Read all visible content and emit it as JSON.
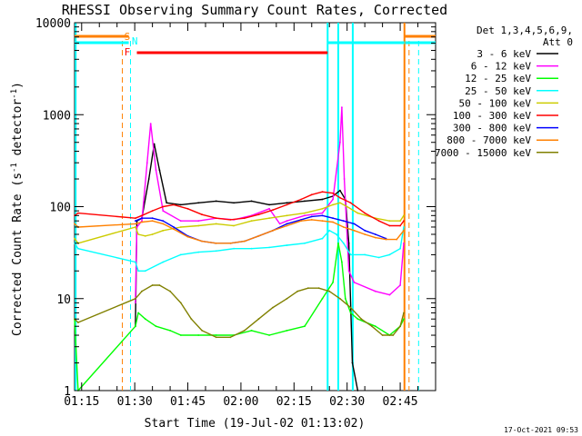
{
  "chart_data": {
    "type": "line",
    "title": "RHESSI Observing Summary Count Rates, Corrected",
    "xlabel": "Start Time (19-Jul-02 01:13:02)",
    "ylabel_main": "Corrected Count Rate (s",
    "ylabel_sup1": "-1",
    "ylabel_mid": " detector",
    "ylabel_sup2": "-1",
    "ylabel_end": ")",
    "timestamp": "17-Oct-2021 09:53",
    "x_min_minutes": 0,
    "x_max_minutes": 102,
    "ylim": [
      1,
      10000
    ],
    "yscale": "log",
    "x_ticks": [
      {
        "label": "01:15",
        "minute": 2
      },
      {
        "label": "01:30",
        "minute": 17
      },
      {
        "label": "01:45",
        "minute": 32
      },
      {
        "label": "02:00",
        "minute": 47
      },
      {
        "label": "02:15",
        "minute": 62
      },
      {
        "label": "02:30",
        "minute": 77
      },
      {
        "label": "02:45",
        "minute": 92
      }
    ],
    "y_ticks": [
      {
        "label": "1",
        "value": 1
      },
      {
        "label": "10",
        "value": 10
      },
      {
        "label": "100",
        "value": 100
      },
      {
        "label": "1000",
        "value": 1000
      },
      {
        "label": "10000",
        "value": 10000
      }
    ],
    "legend_header": [
      "Det 1,3,4,5,6,9,",
      "Att 0"
    ],
    "legend_placement": "right",
    "series": [
      {
        "name": "3 - 6 keV",
        "color": "#000000",
        "points": [
          [
            17.2,
            5
          ],
          [
            17.6,
            70
          ],
          [
            19,
            75
          ],
          [
            21,
            200
          ],
          [
            22.5,
            480
          ],
          [
            24,
            250
          ],
          [
            26,
            110
          ],
          [
            30,
            105
          ],
          [
            35,
            110
          ],
          [
            40,
            115
          ],
          [
            45,
            110
          ],
          [
            50,
            115
          ],
          [
            55,
            105
          ],
          [
            60,
            110
          ],
          [
            65,
            115
          ],
          [
            70,
            120
          ],
          [
            73,
            130
          ],
          [
            75,
            150
          ],
          [
            76.5,
            120
          ],
          [
            77.5,
            40
          ],
          [
            78.5,
            2
          ],
          [
            80,
            1
          ]
        ]
      },
      {
        "name": "6 - 12 keV",
        "color": "#ff00ff",
        "points": [
          [
            17.2,
            9
          ],
          [
            17.6,
            60
          ],
          [
            19,
            70
          ],
          [
            20.5,
            300
          ],
          [
            21.5,
            800
          ],
          [
            23,
            250
          ],
          [
            25,
            90
          ],
          [
            30,
            70
          ],
          [
            35,
            70
          ],
          [
            40,
            75
          ],
          [
            45,
            72
          ],
          [
            50,
            80
          ],
          [
            55,
            95
          ],
          [
            58,
            65
          ],
          [
            60,
            70
          ],
          [
            65,
            80
          ],
          [
            70,
            85
          ],
          [
            73,
            120
          ],
          [
            75,
            500
          ],
          [
            75.5,
            1200
          ],
          [
            76.2,
            200
          ],
          [
            77.5,
            20
          ],
          [
            79,
            15
          ],
          [
            85,
            12
          ],
          [
            89,
            11
          ],
          [
            92,
            14
          ],
          [
            93,
            40
          ]
        ]
      },
      {
        "name": "12 - 25 keV",
        "color": "#00ff00",
        "points": [
          [
            0,
            6
          ],
          [
            1,
            1
          ],
          [
            17.2,
            5
          ],
          [
            18,
            7
          ],
          [
            20,
            6
          ],
          [
            23,
            5
          ],
          [
            27,
            4.5
          ],
          [
            30,
            4
          ],
          [
            35,
            4
          ],
          [
            40,
            4
          ],
          [
            45,
            4
          ],
          [
            50,
            4.5
          ],
          [
            55,
            4
          ],
          [
            60,
            4.5
          ],
          [
            65,
            5
          ],
          [
            70,
            10
          ],
          [
            73,
            15
          ],
          [
            74.5,
            40
          ],
          [
            75.5,
            25
          ],
          [
            76.5,
            10
          ],
          [
            78,
            7
          ],
          [
            80,
            6
          ],
          [
            85,
            5
          ],
          [
            89,
            4
          ],
          [
            92,
            5
          ],
          [
            93,
            6
          ]
        ]
      },
      {
        "name": "25 - 50 keV",
        "color": "#00ffff",
        "points": [
          [
            0,
            40
          ],
          [
            1,
            35
          ],
          [
            17.2,
            25
          ],
          [
            18,
            20
          ],
          [
            20,
            20
          ],
          [
            25,
            25
          ],
          [
            30,
            30
          ],
          [
            35,
            32
          ],
          [
            40,
            33
          ],
          [
            45,
            35
          ],
          [
            50,
            35
          ],
          [
            55,
            36
          ],
          [
            60,
            38
          ],
          [
            65,
            40
          ],
          [
            70,
            45
          ],
          [
            72,
            55
          ],
          [
            74,
            50
          ],
          [
            76,
            40
          ],
          [
            78,
            30
          ],
          [
            82,
            30
          ],
          [
            86,
            28
          ],
          [
            89,
            30
          ],
          [
            92,
            35
          ],
          [
            93,
            60
          ]
        ]
      },
      {
        "name": "50 - 100 keV",
        "color": "#cccc00",
        "points": [
          [
            0,
            45
          ],
          [
            1,
            40
          ],
          [
            17.2,
            60
          ],
          [
            18,
            50
          ],
          [
            20,
            48
          ],
          [
            22,
            50
          ],
          [
            25,
            55
          ],
          [
            30,
            60
          ],
          [
            35,
            62
          ],
          [
            40,
            65
          ],
          [
            45,
            62
          ],
          [
            50,
            70
          ],
          [
            55,
            75
          ],
          [
            60,
            80
          ],
          [
            65,
            85
          ],
          [
            70,
            95
          ],
          [
            73,
            105
          ],
          [
            75,
            110
          ],
          [
            77,
            100
          ],
          [
            80,
            85
          ],
          [
            85,
            75
          ],
          [
            89,
            70
          ],
          [
            92,
            70
          ],
          [
            93,
            80
          ]
        ]
      },
      {
        "name": "100 - 300 keV",
        "color": "#ff0000",
        "points": [
          [
            0,
            80
          ],
          [
            1,
            85
          ],
          [
            17.2,
            75
          ],
          [
            19,
            80
          ],
          [
            22,
            90
          ],
          [
            25,
            100
          ],
          [
            28,
            105
          ],
          [
            32,
            95
          ],
          [
            36,
            82
          ],
          [
            40,
            75
          ],
          [
            44,
            72
          ],
          [
            48,
            75
          ],
          [
            52,
            82
          ],
          [
            56,
            92
          ],
          [
            60,
            105
          ],
          [
            64,
            120
          ],
          [
            67,
            135
          ],
          [
            70,
            145
          ],
          [
            73,
            140
          ],
          [
            75,
            125
          ],
          [
            78,
            110
          ],
          [
            82,
            85
          ],
          [
            86,
            70
          ],
          [
            89,
            62
          ],
          [
            92,
            62
          ],
          [
            93,
            70
          ]
        ]
      },
      {
        "name": "300 - 800 keV",
        "color": "#0000ff",
        "points": [
          [
            17.2,
            70
          ],
          [
            19,
            75
          ],
          [
            22,
            75
          ],
          [
            25,
            70
          ],
          [
            28,
            60
          ],
          [
            32,
            48
          ],
          [
            36,
            42
          ],
          [
            40,
            40
          ],
          [
            44,
            40
          ],
          [
            48,
            42
          ],
          [
            52,
            48
          ],
          [
            56,
            55
          ],
          [
            60,
            65
          ],
          [
            64,
            72
          ],
          [
            67,
            78
          ],
          [
            70,
            80
          ],
          [
            73,
            75
          ],
          [
            76,
            70
          ],
          [
            79,
            65
          ],
          [
            82,
            55
          ],
          [
            85,
            50
          ],
          [
            88,
            45
          ]
        ]
      },
      {
        "name": "800 - 7000 keV",
        "color": "#ff8000",
        "points": [
          [
            0,
            65
          ],
          [
            1,
            60
          ],
          [
            17.2,
            65
          ],
          [
            19,
            68
          ],
          [
            22,
            70
          ],
          [
            25,
            65
          ],
          [
            28,
            57
          ],
          [
            32,
            47
          ],
          [
            36,
            42
          ],
          [
            40,
            40
          ],
          [
            44,
            40
          ],
          [
            48,
            42
          ],
          [
            52,
            48
          ],
          [
            56,
            55
          ],
          [
            60,
            62
          ],
          [
            64,
            70
          ],
          [
            67,
            72
          ],
          [
            70,
            70
          ],
          [
            73,
            68
          ],
          [
            76,
            60
          ],
          [
            79,
            55
          ],
          [
            82,
            50
          ],
          [
            85,
            46
          ],
          [
            88,
            44
          ],
          [
            91,
            44
          ],
          [
            93,
            55
          ]
        ]
      },
      {
        "name": "7000 - 15000 keV",
        "color": "#808000",
        "points": [
          [
            0,
            6
          ],
          [
            1,
            5.5
          ],
          [
            17.2,
            10
          ],
          [
            19,
            12
          ],
          [
            22,
            14
          ],
          [
            24,
            14
          ],
          [
            27,
            12
          ],
          [
            30,
            9
          ],
          [
            33,
            6
          ],
          [
            36,
            4.5
          ],
          [
            40,
            3.8
          ],
          [
            44,
            3.8
          ],
          [
            48,
            4.5
          ],
          [
            52,
            6
          ],
          [
            56,
            8
          ],
          [
            60,
            10
          ],
          [
            63,
            12
          ],
          [
            66,
            13
          ],
          [
            69,
            13
          ],
          [
            72,
            12
          ],
          [
            75,
            10
          ],
          [
            78,
            8
          ],
          [
            81,
            6
          ],
          [
            84,
            5
          ],
          [
            87,
            4
          ],
          [
            90,
            4
          ],
          [
            92,
            5
          ],
          [
            93,
            7
          ]
        ]
      }
    ],
    "flags": [
      {
        "label": "S",
        "color": "#ff8000"
      },
      {
        "label": "N",
        "color": "#00ffff"
      },
      {
        "label": "F",
        "color": "#ff0000"
      }
    ]
  }
}
